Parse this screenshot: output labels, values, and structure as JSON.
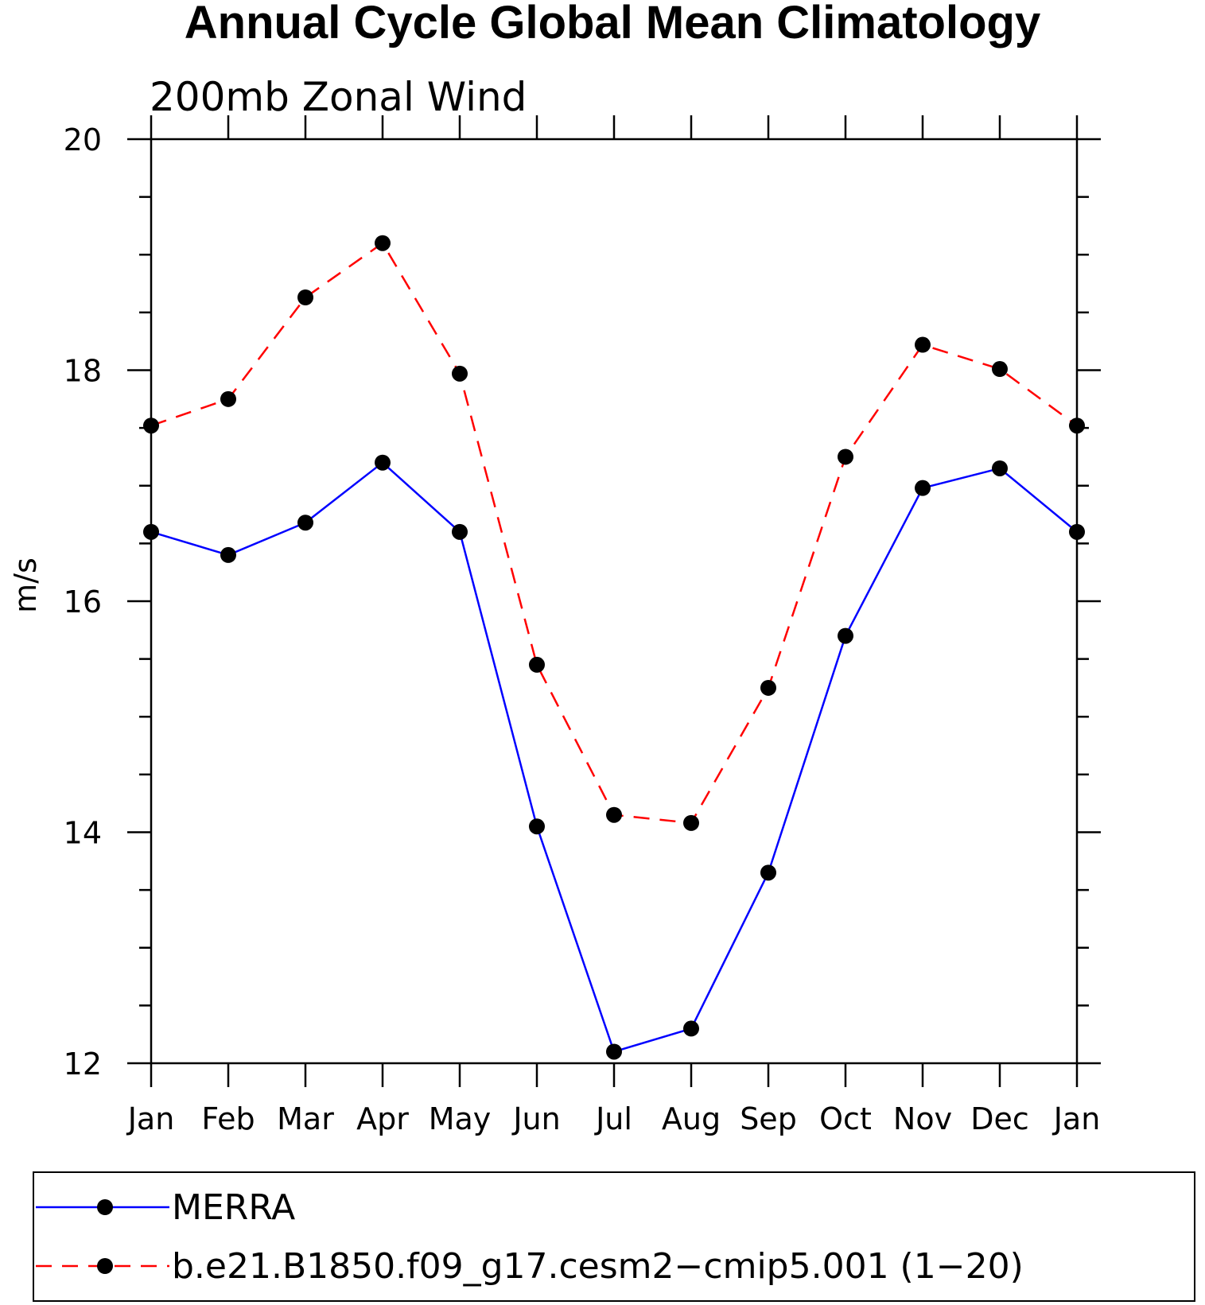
{
  "chart_data": {
    "type": "line",
    "title": "Annual Cycle Global Mean Climatology",
    "subtitle": "200mb Zonal Wind",
    "xlabel": "",
    "ylabel": "m/s",
    "categories": [
      "Jan",
      "Feb",
      "Mar",
      "Apr",
      "May",
      "Jun",
      "Jul",
      "Aug",
      "Sep",
      "Oct",
      "Nov",
      "Dec",
      "Jan"
    ],
    "ylim": [
      12,
      20
    ],
    "yticks": [
      "12",
      "14",
      "16",
      "18",
      "20"
    ],
    "legend_position": "bottom",
    "series": [
      {
        "name": "MERRA",
        "color": "#0000ff",
        "line_style": "solid",
        "values": [
          16.6,
          16.4,
          16.68,
          17.2,
          16.6,
          14.05,
          12.1,
          12.3,
          13.65,
          15.7,
          16.98,
          17.15,
          16.6
        ]
      },
      {
        "name": "b.e21.B1850.f09_g17.cesm2−cmip5.001 (1−20)",
        "color": "#ff0000",
        "line_style": "dashed",
        "values": [
          17.52,
          17.75,
          18.63,
          19.1,
          17.97,
          15.45,
          14.15,
          14.08,
          15.25,
          17.25,
          18.22,
          18.01,
          17.52
        ]
      }
    ]
  }
}
